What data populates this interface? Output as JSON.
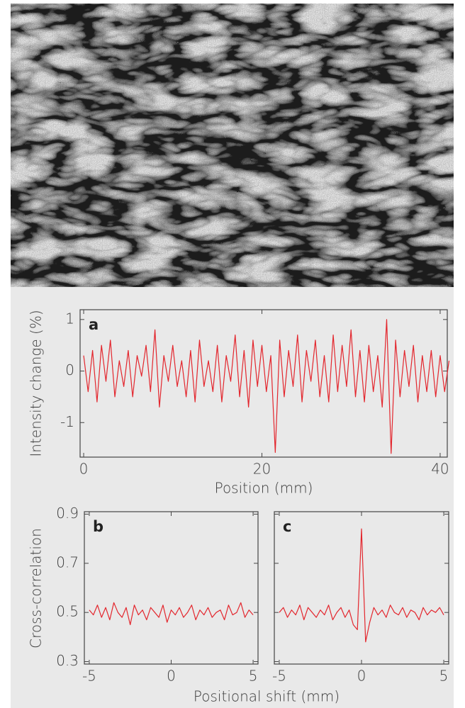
{
  "chart_data": [
    {
      "type": "line",
      "panel_label": "a",
      "y_label": "Intensity change (%)",
      "x_label": "Position (mm)",
      "color": "#e3262d",
      "x": [
        0,
        0.5,
        1,
        1.5,
        2,
        2.5,
        3,
        3.5,
        4,
        4.5,
        5,
        5.5,
        6,
        6.5,
        7,
        7.5,
        8,
        8.5,
        9,
        9.5,
        10,
        10.5,
        11,
        11.5,
        12,
        12.5,
        13,
        13.5,
        14,
        14.5,
        15,
        15.5,
        16,
        16.5,
        17,
        17.5,
        18,
        18.5,
        19,
        19.5,
        20,
        20.5,
        21,
        21.5,
        22,
        22.5,
        23,
        23.5,
        24,
        24.5,
        25,
        25.5,
        26,
        26.5,
        27,
        27.5,
        28,
        28.5,
        29,
        29.5,
        30,
        30.5,
        31,
        31.5,
        32,
        32.5,
        33,
        33.5,
        34,
        34.5,
        35,
        35.5,
        36,
        36.5,
        37,
        37.5,
        38,
        38.5,
        39,
        39.5,
        40,
        40.5,
        41
      ],
      "values": [
        0.3,
        -0.4,
        0.4,
        -0.6,
        0.5,
        -0.2,
        0.6,
        -0.5,
        0.2,
        -0.3,
        0.4,
        -0.5,
        0.3,
        -0.1,
        0.5,
        -0.4,
        0.8,
        -0.7,
        0.3,
        -0.2,
        0.5,
        -0.3,
        0.2,
        -0.5,
        0.4,
        -0.6,
        0.6,
        -0.3,
        0.2,
        -0.4,
        0.5,
        -0.6,
        0.3,
        -0.2,
        0.7,
        -0.5,
        0.4,
        -0.7,
        0.6,
        -0.3,
        0.5,
        -0.4,
        0.3,
        -1.58,
        0.6,
        -0.5,
        0.4,
        -0.3,
        0.7,
        -0.6,
        0.4,
        -0.2,
        0.6,
        -0.5,
        0.3,
        -0.6,
        0.7,
        -0.4,
        0.5,
        -0.3,
        0.8,
        -0.5,
        0.4,
        -0.6,
        0.5,
        -0.4,
        0.3,
        -0.7,
        1.0,
        -1.6,
        0.6,
        -0.5,
        0.4,
        -0.3,
        0.5,
        -0.6,
        0.3,
        -0.4,
        0.4,
        -0.5,
        0.3,
        -0.4,
        0.2
      ],
      "xlim": [
        -0.4,
        40.8
      ],
      "ylim": [
        -1.67,
        1.19
      ],
      "xticks": [
        0,
        20,
        40
      ],
      "yticks": [
        -1,
        0,
        1
      ]
    },
    {
      "type": "line",
      "panel_label": "b",
      "y_label": "Cross-correlation",
      "x_label": "Positional shift (mm)",
      "color": "#e3262d",
      "x": [
        -5,
        -4.75,
        -4.5,
        -4.25,
        -4,
        -3.75,
        -3.5,
        -3.25,
        -3,
        -2.75,
        -2.5,
        -2.25,
        -2,
        -1.75,
        -1.5,
        -1.25,
        -1,
        -0.75,
        -0.5,
        -0.25,
        0,
        0.25,
        0.5,
        0.75,
        1,
        1.25,
        1.5,
        1.75,
        2,
        2.25,
        2.5,
        2.75,
        3,
        3.25,
        3.5,
        3.75,
        4,
        4.25,
        4.5,
        4.75,
        5
      ],
      "values": [
        0.51,
        0.49,
        0.53,
        0.48,
        0.52,
        0.47,
        0.54,
        0.5,
        0.48,
        0.52,
        0.45,
        0.53,
        0.49,
        0.51,
        0.47,
        0.52,
        0.5,
        0.48,
        0.53,
        0.46,
        0.51,
        0.49,
        0.52,
        0.48,
        0.5,
        0.53,
        0.47,
        0.51,
        0.49,
        0.52,
        0.48,
        0.5,
        0.51,
        0.47,
        0.53,
        0.49,
        0.5,
        0.54,
        0.48,
        0.51,
        0.49
      ],
      "xlim": [
        -5.3,
        5.3
      ],
      "ylim": [
        0.29,
        0.91
      ],
      "xticks": [
        -5,
        0,
        5
      ],
      "yticks": [
        0.3,
        0.5,
        0.7,
        0.9
      ]
    },
    {
      "type": "line",
      "panel_label": "c",
      "color": "#e3262d",
      "x": [
        -5,
        -4.75,
        -4.5,
        -4.25,
        -4,
        -3.75,
        -3.5,
        -3.25,
        -3,
        -2.75,
        -2.5,
        -2.25,
        -2,
        -1.75,
        -1.5,
        -1.25,
        -1,
        -0.75,
        -0.5,
        -0.25,
        0,
        0.25,
        0.5,
        0.75,
        1,
        1.25,
        1.5,
        1.75,
        2,
        2.25,
        2.5,
        2.75,
        3,
        3.25,
        3.5,
        3.75,
        4,
        4.25,
        4.5,
        4.75,
        5
      ],
      "values": [
        0.5,
        0.52,
        0.48,
        0.51,
        0.49,
        0.53,
        0.47,
        0.52,
        0.5,
        0.48,
        0.51,
        0.49,
        0.53,
        0.47,
        0.5,
        0.52,
        0.48,
        0.51,
        0.45,
        0.43,
        0.84,
        0.38,
        0.46,
        0.52,
        0.49,
        0.51,
        0.48,
        0.53,
        0.5,
        0.49,
        0.52,
        0.48,
        0.51,
        0.5,
        0.47,
        0.52,
        0.49,
        0.51,
        0.5,
        0.52,
        0.49
      ],
      "xlim": [
        -5.3,
        5.3
      ],
      "ylim": [
        0.29,
        0.91
      ],
      "xticks": [
        -5,
        0,
        5
      ]
    }
  ]
}
